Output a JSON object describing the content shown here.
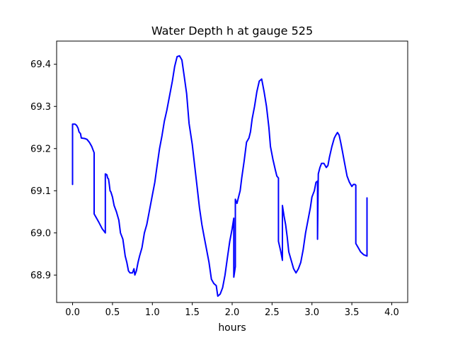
{
  "chart_data": {
    "type": "line",
    "title": "Water Depth h at gauge 525",
    "xlabel": "hours",
    "ylabel": "",
    "xlim": [
      -0.2,
      4.2
    ],
    "ylim": [
      68.835,
      69.455
    ],
    "x_ticks": [
      0.0,
      0.5,
      1.0,
      1.5,
      2.0,
      2.5,
      3.0,
      3.5,
      4.0
    ],
    "x_tick_labels": [
      "0.0",
      "0.5",
      "1.0",
      "1.5",
      "2.0",
      "2.5",
      "3.0",
      "3.5",
      "4.0"
    ],
    "y_ticks": [
      68.9,
      69.0,
      69.1,
      69.2,
      69.3,
      69.4
    ],
    "y_tick_labels": [
      "68.9",
      "69.0",
      "69.1",
      "69.2",
      "69.3",
      "69.4"
    ],
    "grid": false,
    "legend": "none",
    "series": [
      {
        "color": "#0000ff",
        "points": [
          [
            0.0,
            69.115
          ],
          [
            0.0,
            69.258
          ],
          [
            0.03,
            69.258
          ],
          [
            0.05,
            69.255
          ],
          [
            0.07,
            69.248
          ],
          [
            0.08,
            69.24
          ],
          [
            0.1,
            69.235
          ],
          [
            0.11,
            69.225
          ],
          [
            0.15,
            69.224
          ],
          [
            0.18,
            69.222
          ],
          [
            0.21,
            69.215
          ],
          [
            0.24,
            69.205
          ],
          [
            0.27,
            69.19
          ],
          [
            0.27,
            69.045
          ],
          [
            0.3,
            69.035
          ],
          [
            0.33,
            69.025
          ],
          [
            0.37,
            69.01
          ],
          [
            0.41,
            69.0
          ],
          [
            0.41,
            69.14
          ],
          [
            0.43,
            69.138
          ],
          [
            0.44,
            69.13
          ],
          [
            0.45,
            69.128
          ],
          [
            0.46,
            69.115
          ],
          [
            0.47,
            69.1
          ],
          [
            0.48,
            69.097
          ],
          [
            0.5,
            69.085
          ],
          [
            0.52,
            69.065
          ],
          [
            0.55,
            69.05
          ],
          [
            0.58,
            69.03
          ],
          [
            0.6,
            69.0
          ],
          [
            0.63,
            68.985
          ],
          [
            0.66,
            68.945
          ],
          [
            0.68,
            68.93
          ],
          [
            0.7,
            68.91
          ],
          [
            0.72,
            68.905
          ],
          [
            0.75,
            68.905
          ],
          [
            0.77,
            68.915
          ],
          [
            0.78,
            68.9
          ],
          [
            0.8,
            68.91
          ],
          [
            0.82,
            68.93
          ],
          [
            0.84,
            68.945
          ],
          [
            0.87,
            68.965
          ],
          [
            0.9,
            69.0
          ],
          [
            0.93,
            69.02
          ],
          [
            0.96,
            69.05
          ],
          [
            1.0,
            69.09
          ],
          [
            1.03,
            69.12
          ],
          [
            1.06,
            69.16
          ],
          [
            1.09,
            69.2
          ],
          [
            1.12,
            69.23
          ],
          [
            1.15,
            69.265
          ],
          [
            1.18,
            69.29
          ],
          [
            1.22,
            69.33
          ],
          [
            1.25,
            69.36
          ],
          [
            1.28,
            69.395
          ],
          [
            1.31,
            69.418
          ],
          [
            1.34,
            69.42
          ],
          [
            1.37,
            69.41
          ],
          [
            1.4,
            69.37
          ],
          [
            1.43,
            69.33
          ],
          [
            1.46,
            69.26
          ],
          [
            1.5,
            69.21
          ],
          [
            1.53,
            69.16
          ],
          [
            1.56,
            69.11
          ],
          [
            1.59,
            69.06
          ],
          [
            1.62,
            69.02
          ],
          [
            1.65,
            68.99
          ],
          [
            1.68,
            68.96
          ],
          [
            1.71,
            68.93
          ],
          [
            1.74,
            68.89
          ],
          [
            1.77,
            68.88
          ],
          [
            1.8,
            68.875
          ],
          [
            1.82,
            68.85
          ],
          [
            1.85,
            68.855
          ],
          [
            1.88,
            68.87
          ],
          [
            1.91,
            68.9
          ],
          [
            1.94,
            68.94
          ],
          [
            1.97,
            68.98
          ],
          [
            2.0,
            69.01
          ],
          [
            2.02,
            69.035
          ],
          [
            2.02,
            68.895
          ],
          [
            2.04,
            68.92
          ],
          [
            2.04,
            69.08
          ],
          [
            2.06,
            69.07
          ],
          [
            2.08,
            69.085
          ],
          [
            2.1,
            69.1
          ],
          [
            2.12,
            69.13
          ],
          [
            2.15,
            69.17
          ],
          [
            2.18,
            69.215
          ],
          [
            2.21,
            69.225
          ],
          [
            2.23,
            69.24
          ],
          [
            2.25,
            69.27
          ],
          [
            2.28,
            69.3
          ],
          [
            2.31,
            69.335
          ],
          [
            2.34,
            69.36
          ],
          [
            2.37,
            69.365
          ],
          [
            2.4,
            69.335
          ],
          [
            2.43,
            69.3
          ],
          [
            2.46,
            69.25
          ],
          [
            2.48,
            69.205
          ],
          [
            2.51,
            69.175
          ],
          [
            2.54,
            69.15
          ],
          [
            2.56,
            69.135
          ],
          [
            2.58,
            69.13
          ],
          [
            2.58,
            68.98
          ],
          [
            2.61,
            68.955
          ],
          [
            2.63,
            68.935
          ],
          [
            2.63,
            69.065
          ],
          [
            2.65,
            69.04
          ],
          [
            2.67,
            69.02
          ],
          [
            2.69,
            68.99
          ],
          [
            2.71,
            68.955
          ],
          [
            2.74,
            68.935
          ],
          [
            2.77,
            68.915
          ],
          [
            2.8,
            68.905
          ],
          [
            2.83,
            68.915
          ],
          [
            2.86,
            68.93
          ],
          [
            2.89,
            68.96
          ],
          [
            2.92,
            69.0
          ],
          [
            2.95,
            69.03
          ],
          [
            2.98,
            69.06
          ],
          [
            3.0,
            69.085
          ],
          [
            3.03,
            69.1
          ],
          [
            3.05,
            69.12
          ],
          [
            3.07,
            69.123
          ],
          [
            3.07,
            68.985
          ],
          [
            3.08,
            69.14
          ],
          [
            3.1,
            69.155
          ],
          [
            3.12,
            69.165
          ],
          [
            3.15,
            69.165
          ],
          [
            3.18,
            69.155
          ],
          [
            3.2,
            69.16
          ],
          [
            3.22,
            69.18
          ],
          [
            3.25,
            69.205
          ],
          [
            3.28,
            69.225
          ],
          [
            3.3,
            69.232
          ],
          [
            3.32,
            69.238
          ],
          [
            3.34,
            69.232
          ],
          [
            3.36,
            69.215
          ],
          [
            3.38,
            69.195
          ],
          [
            3.41,
            69.165
          ],
          [
            3.44,
            69.135
          ],
          [
            3.47,
            69.12
          ],
          [
            3.5,
            69.11
          ],
          [
            3.52,
            69.115
          ],
          [
            3.54,
            69.115
          ],
          [
            3.55,
            69.113
          ],
          [
            3.55,
            68.975
          ],
          [
            3.58,
            68.965
          ],
          [
            3.61,
            68.955
          ],
          [
            3.65,
            68.948
          ],
          [
            3.69,
            68.945
          ],
          [
            3.69,
            69.083
          ]
        ]
      }
    ]
  }
}
